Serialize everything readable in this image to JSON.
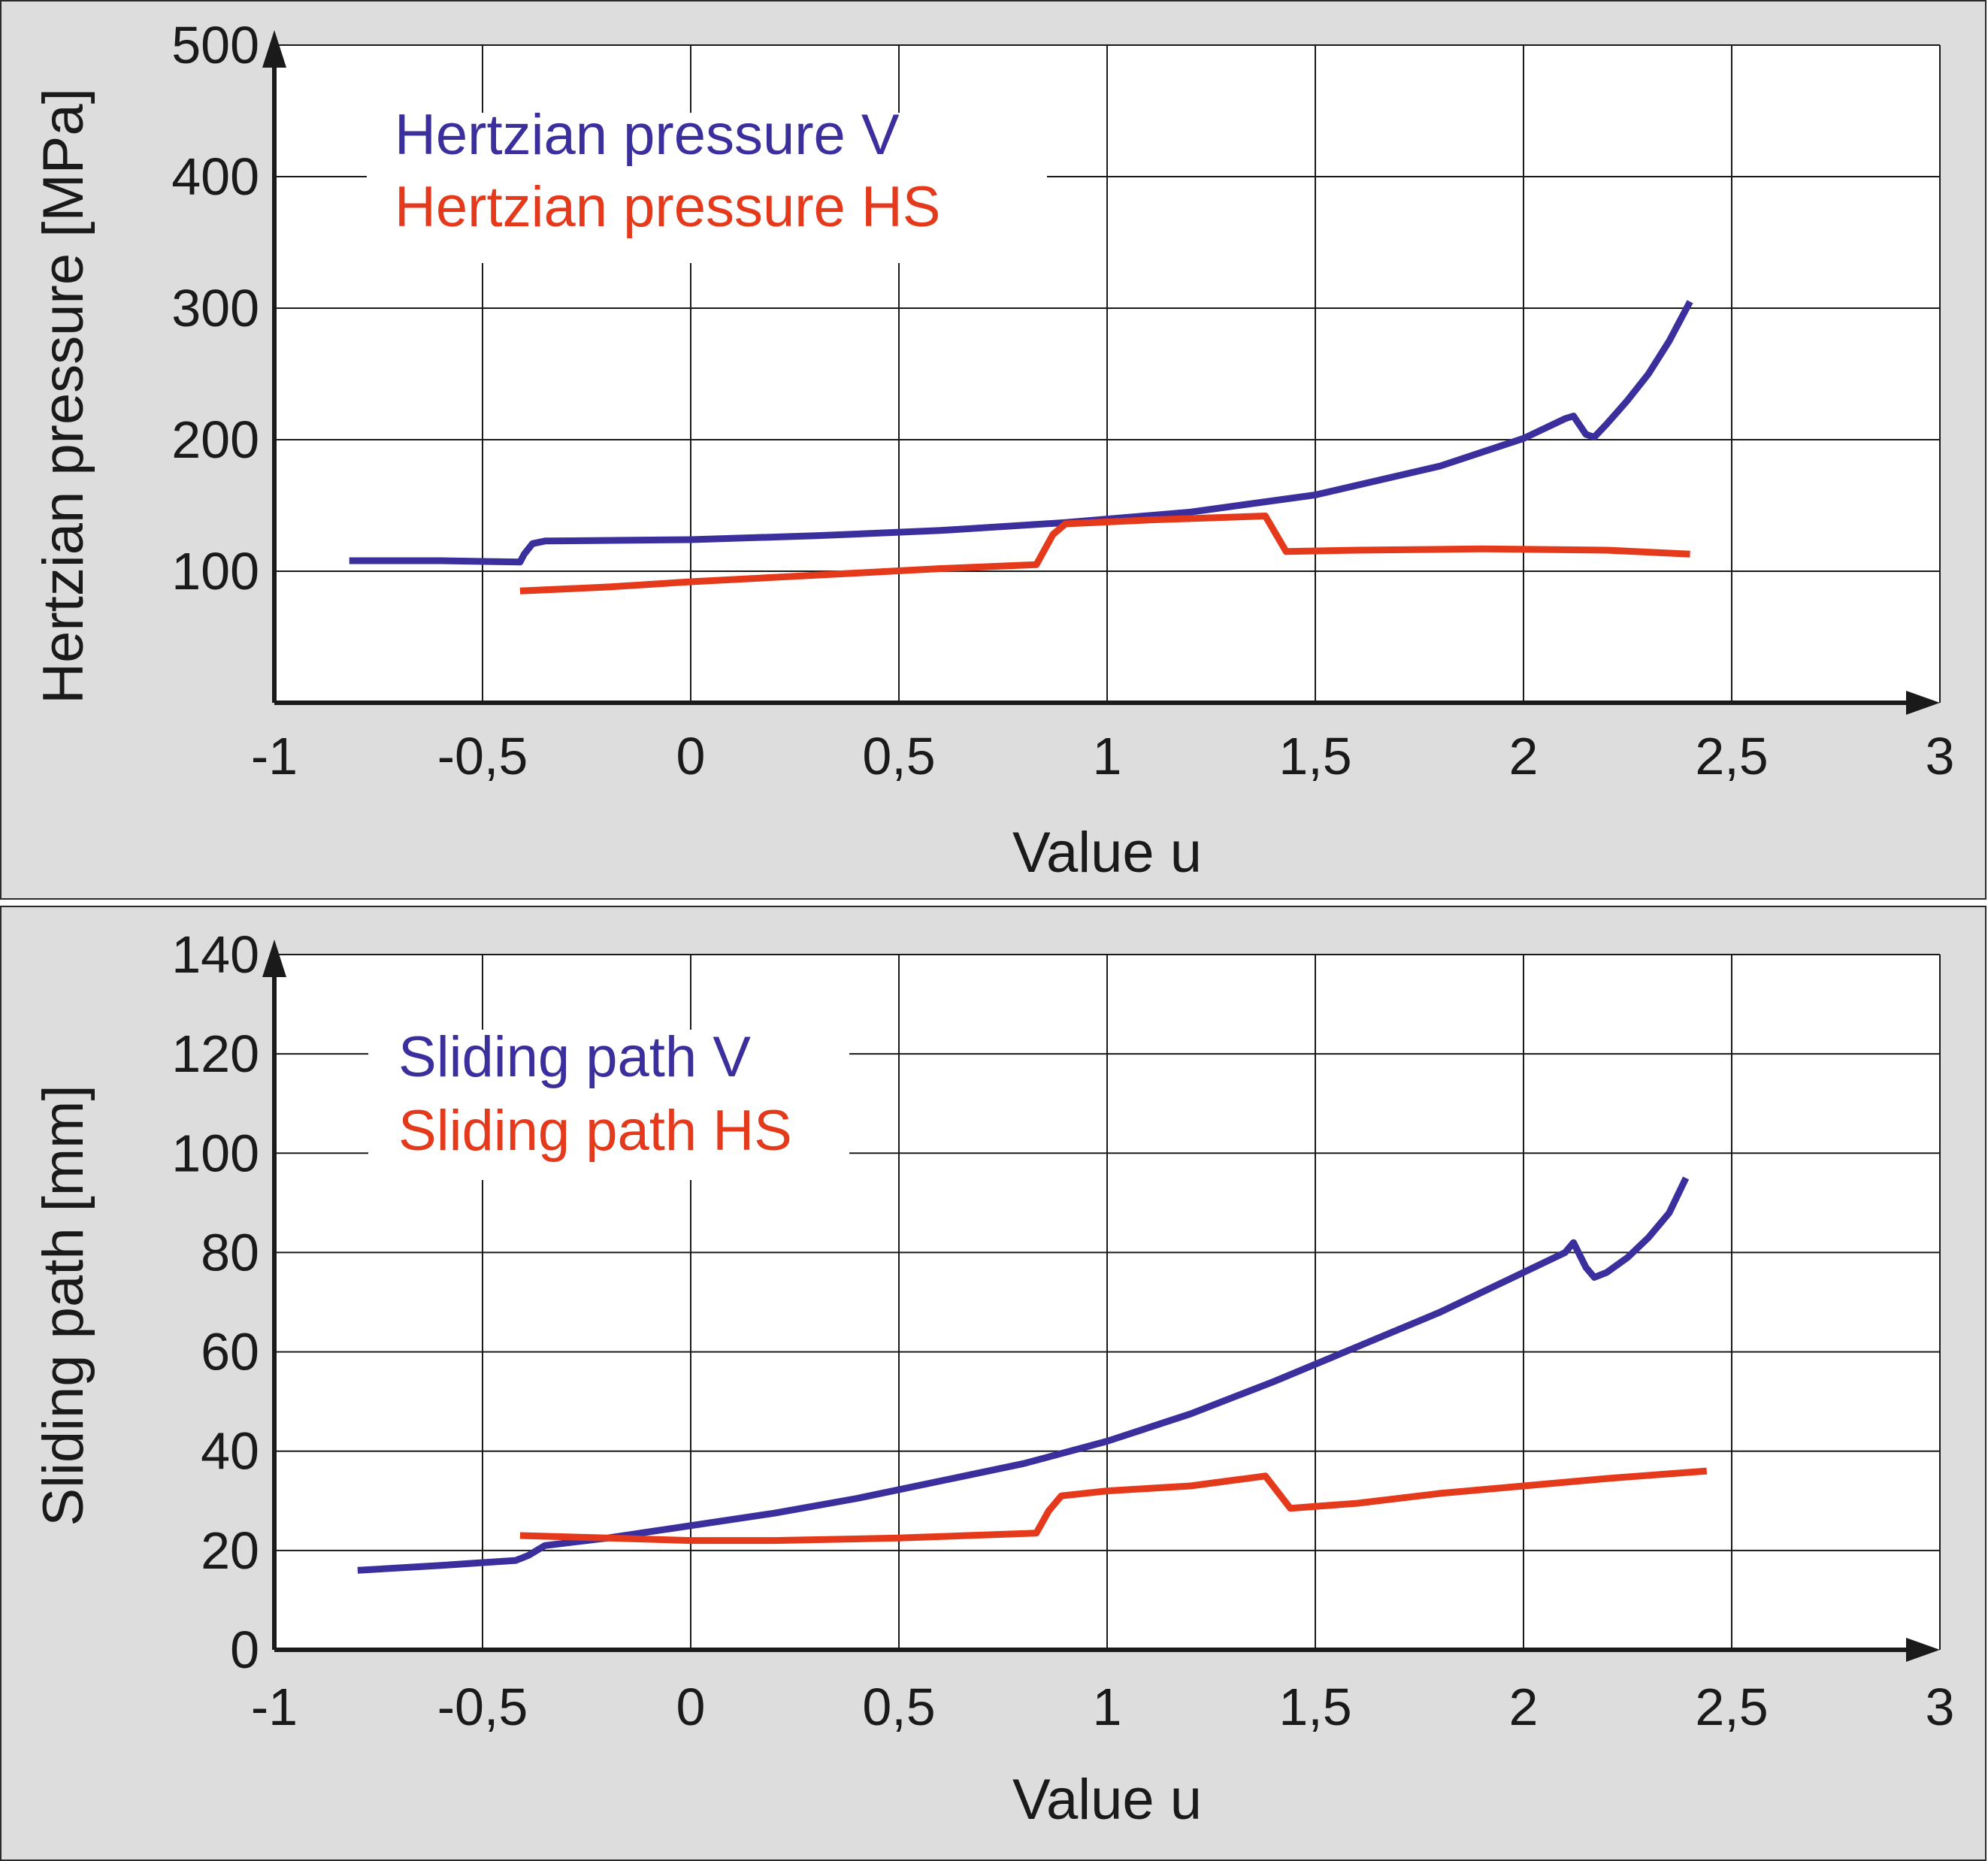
{
  "colors": {
    "v": "#3a2f9c",
    "hs": "#e5391c",
    "grid": "#1a1a1a",
    "panel": "#dddddd",
    "plot": "#ffffff"
  },
  "chart_data": [
    {
      "type": "line",
      "xlabel": "Value u",
      "ylabel": "Hertzian pressure  [MPa]",
      "xlim": [
        -1,
        3
      ],
      "ylim": [
        0,
        500
      ],
      "xticks": [
        -1,
        -0.5,
        0,
        0.5,
        1,
        1.5,
        2,
        2.5,
        3
      ],
      "xtick_labels": [
        "-1",
        "-0,5",
        "0",
        "0,5",
        "1",
        "1,5",
        "2",
        "2,5",
        "3"
      ],
      "yticks": [
        100,
        200,
        300,
        400,
        500
      ],
      "ytick_labels": [
        "100",
        "200",
        "300",
        "400",
        "500"
      ],
      "grid": true,
      "legend": "top-left",
      "series": [
        {
          "name": "Hertzian pressure V",
          "color": "#3a2f9c",
          "points": [
            [
              -0.82,
              108
            ],
            [
              -0.6,
              108
            ],
            [
              -0.41,
              107
            ],
            [
              -0.4,
              113
            ],
            [
              -0.38,
              121
            ],
            [
              -0.35,
              123
            ],
            [
              0,
              124
            ],
            [
              0.3,
              127
            ],
            [
              0.6,
              131
            ],
            [
              0.9,
              137
            ],
            [
              1.2,
              145
            ],
            [
              1.5,
              158
            ],
            [
              1.8,
              180
            ],
            [
              2.0,
              201
            ],
            [
              2.1,
              216
            ],
            [
              2.12,
              218
            ],
            [
              2.15,
              204
            ],
            [
              2.17,
              202
            ],
            [
              2.2,
              212
            ],
            [
              2.25,
              230
            ],
            [
              2.3,
              250
            ],
            [
              2.35,
              275
            ],
            [
              2.4,
              305
            ]
          ]
        },
        {
          "name": "Hertzian pressure HS",
          "color": "#e5391c",
          "points": [
            [
              -0.41,
              85
            ],
            [
              -0.2,
              88
            ],
            [
              0,
              92
            ],
            [
              0.3,
              97
            ],
            [
              0.6,
              102
            ],
            [
              0.83,
              105
            ],
            [
              0.87,
              128
            ],
            [
              0.9,
              136
            ],
            [
              1.1,
              139
            ],
            [
              1.38,
              142
            ],
            [
              1.43,
              115
            ],
            [
              1.6,
              116
            ],
            [
              1.9,
              117
            ],
            [
              2.2,
              116
            ],
            [
              2.4,
              113
            ]
          ]
        }
      ]
    },
    {
      "type": "line",
      "xlabel": "Value u",
      "ylabel": "Sliding path [mm]",
      "xlim": [
        -1,
        3
      ],
      "ylim": [
        0,
        140
      ],
      "xticks": [
        -1,
        -0.5,
        0,
        0.5,
        1,
        1.5,
        2,
        2.5,
        3
      ],
      "xtick_labels": [
        "-1",
        "-0,5",
        "0",
        "0,5",
        "1",
        "1,5",
        "2",
        "2,5",
        "3"
      ],
      "yticks": [
        0,
        20,
        40,
        60,
        80,
        100,
        120,
        140
      ],
      "ytick_labels": [
        "0",
        "20",
        "40",
        "60",
        "80",
        "100",
        "120",
        "140"
      ],
      "grid": true,
      "legend": "top-left",
      "series": [
        {
          "name": "Sliding path V",
          "color": "#3a2f9c",
          "points": [
            [
              -0.8,
              16
            ],
            [
              -0.6,
              17
            ],
            [
              -0.42,
              18
            ],
            [
              -0.39,
              19
            ],
            [
              -0.35,
              21
            ],
            [
              -0.2,
              22.5
            ],
            [
              0,
              25
            ],
            [
              0.2,
              27.5
            ],
            [
              0.4,
              30.5
            ],
            [
              0.6,
              34
            ],
            [
              0.8,
              37.5
            ],
            [
              1.0,
              42
            ],
            [
              1.2,
              47.5
            ],
            [
              1.4,
              54
            ],
            [
              1.6,
              61
            ],
            [
              1.8,
              68
            ],
            [
              2.0,
              76
            ],
            [
              2.1,
              80
            ],
            [
              2.12,
              82
            ],
            [
              2.15,
              77
            ],
            [
              2.17,
              75
            ],
            [
              2.2,
              76
            ],
            [
              2.25,
              79
            ],
            [
              2.3,
              83
            ],
            [
              2.35,
              88
            ],
            [
              2.39,
              95
            ]
          ]
        },
        {
          "name": "Sliding path HS",
          "color": "#e5391c",
          "points": [
            [
              -0.41,
              23
            ],
            [
              -0.2,
              22.5
            ],
            [
              0,
              22
            ],
            [
              0.2,
              22
            ],
            [
              0.5,
              22.5
            ],
            [
              0.83,
              23.5
            ],
            [
              0.86,
              28
            ],
            [
              0.89,
              31
            ],
            [
              1.0,
              32
            ],
            [
              1.2,
              33
            ],
            [
              1.38,
              35
            ],
            [
              1.44,
              28.5
            ],
            [
              1.6,
              29.5
            ],
            [
              1.8,
              31.5
            ],
            [
              2.0,
              33
            ],
            [
              2.2,
              34.5
            ],
            [
              2.44,
              36
            ]
          ]
        }
      ]
    }
  ]
}
